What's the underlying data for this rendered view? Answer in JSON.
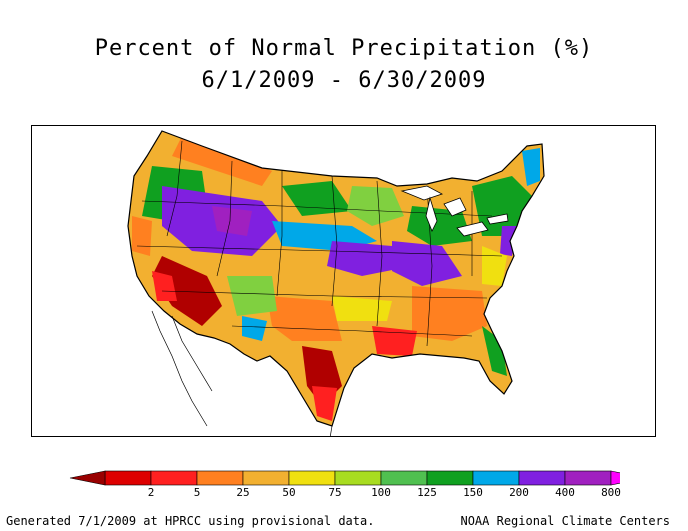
{
  "map": {
    "title_line1": "Percent of Normal Precipitation (%)",
    "title_line2": "6/1/2009 - 6/30/2009"
  },
  "legend": {
    "ticks": [
      "2",
      "5",
      "25",
      "50",
      "75",
      "100",
      "125",
      "150",
      "200",
      "400",
      "800"
    ],
    "colors": [
      "#990000",
      "#dd0000",
      "#ff2020",
      "#ff8020",
      "#f2b030",
      "#f0e010",
      "#a8dc20",
      "#50c050",
      "#10a020",
      "#00a8e8",
      "#8020e0",
      "#a020c0",
      "#ff00ff"
    ]
  },
  "footer": {
    "left": "Generated 7/1/2009 at HPRCC using provisional data.",
    "right": "NOAA Regional Climate Centers"
  },
  "map_colors": {
    "very_dry": "#b00000",
    "dry": "#ff2020",
    "orange": "#ff8020",
    "tan": "#f2b030",
    "yellow": "#f0e010",
    "lightgreen": "#80d040",
    "green": "#10a020",
    "blue": "#00a8e8",
    "purple": "#8020e0",
    "magenta": "#a020c0"
  }
}
